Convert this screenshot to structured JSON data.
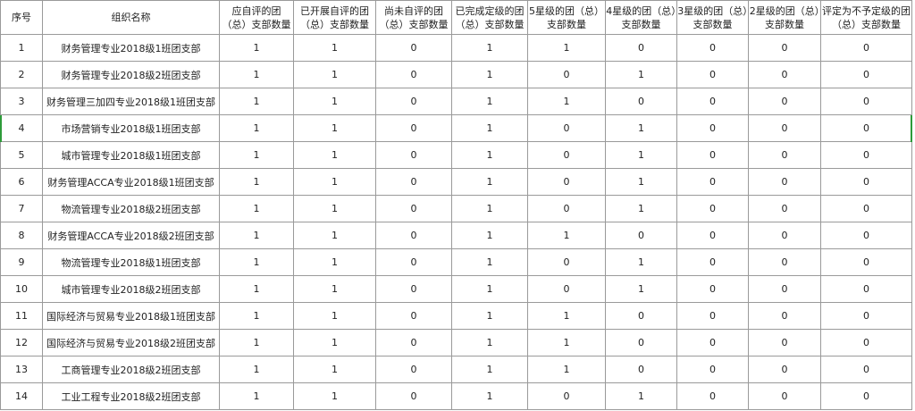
{
  "columns": [
    "序号",
    "组织名称",
    "应自评的团（总）支部数量",
    "已开展自评的团（总）支部数量",
    "尚未自评的团（总）支部数量",
    "已完成定级的团（总）支部数量",
    "5星级的团（总）支部数量",
    "4星级的团（总）支部数量",
    "3星级的团（总）支部数量",
    "2星级的团（总）支部数量",
    "评定为不予定级的团（总）支部数量"
  ],
  "rows": [
    [
      "1",
      "财务管理专业2018级1班团支部",
      "1",
      "1",
      "0",
      "1",
      "1",
      "0",
      "0",
      "0",
      "0"
    ],
    [
      "2",
      "财务管理专业2018级2班团支部",
      "1",
      "1",
      "0",
      "1",
      "0",
      "1",
      "0",
      "0",
      "0"
    ],
    [
      "3",
      "财务管理三加四专业2018级1班团支部",
      "1",
      "1",
      "0",
      "1",
      "1",
      "0",
      "0",
      "0",
      "0"
    ],
    [
      "4",
      "市场营销专业2018级1班团支部",
      "1",
      "1",
      "0",
      "1",
      "0",
      "1",
      "0",
      "0",
      "0"
    ],
    [
      "5",
      "城市管理专业2018级1班团支部",
      "1",
      "1",
      "0",
      "1",
      "0",
      "1",
      "0",
      "0",
      "0"
    ],
    [
      "6",
      "财务管理ACCA专业2018级1班团支部",
      "1",
      "1",
      "0",
      "1",
      "0",
      "1",
      "0",
      "0",
      "0"
    ],
    [
      "7",
      "物流管理专业2018级2班团支部",
      "1",
      "1",
      "0",
      "1",
      "0",
      "1",
      "0",
      "0",
      "0"
    ],
    [
      "8",
      "财务管理ACCA专业2018级2班团支部",
      "1",
      "1",
      "0",
      "1",
      "1",
      "0",
      "0",
      "0",
      "0"
    ],
    [
      "9",
      "物流管理专业2018级1班团支部",
      "1",
      "1",
      "0",
      "1",
      "0",
      "1",
      "0",
      "0",
      "0"
    ],
    [
      "10",
      "城市管理专业2018级2班团支部",
      "1",
      "1",
      "0",
      "1",
      "0",
      "1",
      "0",
      "0",
      "0"
    ],
    [
      "11",
      "国际经济与贸易专业2018级1班团支部",
      "1",
      "1",
      "0",
      "1",
      "1",
      "0",
      "0",
      "0",
      "0"
    ],
    [
      "12",
      "国际经济与贸易专业2018级2班团支部",
      "1",
      "1",
      "0",
      "1",
      "1",
      "0",
      "0",
      "0",
      "0"
    ],
    [
      "13",
      "工商管理专业2018级2班团支部",
      "1",
      "1",
      "0",
      "1",
      "1",
      "0",
      "0",
      "0",
      "0"
    ],
    [
      "14",
      "工业工程专业2018级2班团支部",
      "1",
      "1",
      "0",
      "1",
      "0",
      "1",
      "0",
      "0",
      "0"
    ]
  ],
  "selection_color": "#2e9b3a"
}
